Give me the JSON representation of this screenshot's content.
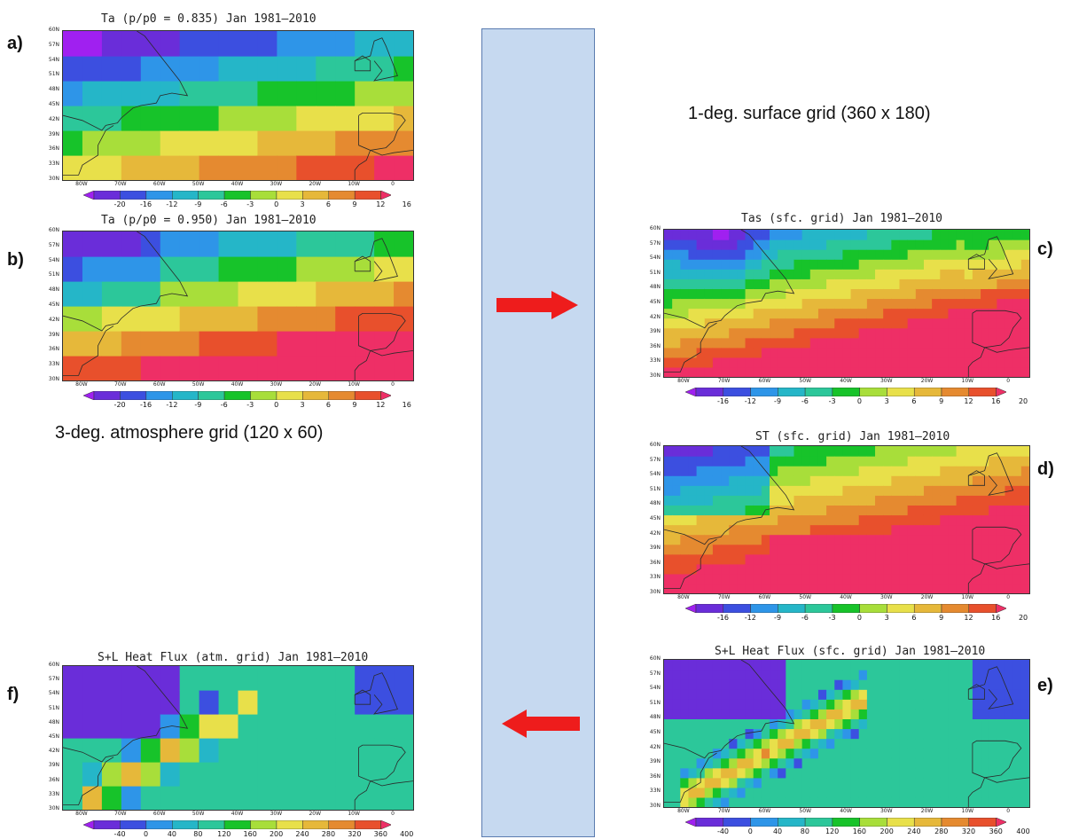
{
  "labels": {
    "surface_grid_note": "1-deg. surface grid (360 x 180)",
    "atmosphere_grid_note": "3-deg. atmosphere grid (120 x 60)"
  },
  "colors": {
    "band_fill": "#c6d9f0",
    "band_border": "#5b7cb0",
    "arrow": "#ee1c1c",
    "land_outline": "#2a2a2a",
    "palette": [
      "#a020f0",
      "#6a2dd9",
      "#3c4fe0",
      "#2e95e8",
      "#25b6c8",
      "#2cc79a",
      "#17c32a",
      "#a8de3a",
      "#e8e04a",
      "#e6b83a",
      "#e58a30",
      "#e8502c",
      "#ee2f66"
    ]
  },
  "panels": [
    {
      "id": "a",
      "letter": "a)",
      "title": "Ta (p/p0 = 0.835)  Jan 1981–2010",
      "field": "ta835",
      "resolution": "coarse",
      "colorbar": [
        "-20",
        "-16",
        "-12",
        "-9",
        "-6",
        "-3",
        "0",
        "3",
        "6",
        "9",
        "12",
        "16"
      ]
    },
    {
      "id": "b",
      "letter": "b)",
      "title": "Ta (p/p0 = 0.950)  Jan 1981–2010",
      "field": "ta950",
      "resolution": "coarse",
      "colorbar": [
        "-20",
        "-16",
        "-12",
        "-9",
        "-6",
        "-3",
        "0",
        "3",
        "6",
        "9",
        "12",
        "16"
      ]
    },
    {
      "id": "c",
      "letter": "c)",
      "title": "Tas (sfc. grid)  Jan 1981–2010",
      "field": "tas",
      "resolution": "fine",
      "colorbar": [
        "-16",
        "-12",
        "-9",
        "-6",
        "-3",
        "0",
        "3",
        "6",
        "9",
        "12",
        "16",
        "20"
      ]
    },
    {
      "id": "d",
      "letter": "d)",
      "title": "ST (sfc. grid)  Jan 1981–2010",
      "field": "st",
      "resolution": "fine",
      "colorbar": [
        "-16",
        "-12",
        "-9",
        "-6",
        "-3",
        "0",
        "3",
        "6",
        "9",
        "12",
        "16",
        "20"
      ]
    },
    {
      "id": "e",
      "letter": "e)",
      "title": "S+L Heat Flux (sfc. grid)  Jan 1981–2010",
      "field": "flux",
      "resolution": "fine",
      "colorbar": [
        "-40",
        "0",
        "40",
        "80",
        "120",
        "160",
        "200",
        "240",
        "280",
        "320",
        "360",
        "400"
      ]
    },
    {
      "id": "f",
      "letter": "f)",
      "title": "S+L Heat Flux (atm. grid)  Jan 1981–2010",
      "field": "flux",
      "resolution": "coarse",
      "colorbar": [
        "-40",
        "0",
        "40",
        "80",
        "120",
        "160",
        "200",
        "240",
        "280",
        "320",
        "360",
        "400"
      ]
    }
  ],
  "lat_labels": [
    "60N",
    "57N",
    "54N",
    "51N",
    "48N",
    "45N",
    "42N",
    "39N",
    "36N",
    "33N",
    "30N"
  ],
  "lon_labels": [
    "80W",
    "70W",
    "60W",
    "50W",
    "40W",
    "30W",
    "20W",
    "10W",
    "0"
  ]
}
